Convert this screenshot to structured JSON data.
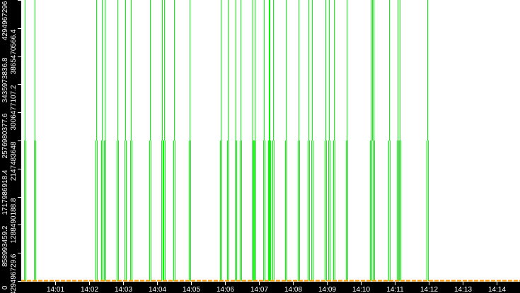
{
  "chart_data": {
    "type": "bar",
    "title": "",
    "xlabel": "",
    "ylabel": "",
    "ylim": [
      0,
      4294967296
    ],
    "xlim": [
      "14:00:00",
      "14:14:45"
    ],
    "grid": false,
    "x_ticks": [
      "14:01",
      "14:02",
      "14:03",
      "14:04",
      "14:05",
      "14:06",
      "14:07",
      "14:08",
      "14:09",
      "14:10",
      "14:11",
      "14:12",
      "14:13",
      "14:14"
    ],
    "y_ticks": [
      "0",
      "429496729.6",
      "858993459.2",
      "1288490188.8",
      "1717986918.4",
      "2147483648",
      "2576980377.6",
      "3006477107.2",
      "3435973836.8",
      "3865470566.4",
      "4294967296"
    ],
    "colors": {
      "background": "#ffffff",
      "frame": "#000000",
      "spikes": "#00ff00",
      "baseline_series": "#ff9900",
      "text": "#ffffff"
    },
    "series": [
      {
        "type": "spike",
        "color": "#00ff00",
        "x": [
          "14:00:06",
          "14:00:24",
          "14:02:13",
          "14:02:23",
          "14:02:28",
          "14:02:50",
          "14:03:04",
          "14:03:14",
          "14:03:47",
          "14:04:09",
          "14:04:13",
          "14:04:30",
          "14:04:58",
          "14:05:52",
          "14:06:05",
          "14:06:19",
          "14:06:27",
          "14:06:49",
          "14:06:53",
          "14:07:09",
          "14:07:17",
          "14:07:19",
          "14:07:25",
          "14:07:47",
          "14:08:10",
          "14:08:28",
          "14:08:34",
          "14:08:58",
          "14:09:04",
          "14:09:12",
          "14:09:35",
          "14:10:17",
          "14:10:20",
          "14:10:23",
          "14:10:50",
          "14:11:05",
          "14:11:09",
          "14:11:58"
        ],
        "values": [
          4294967296,
          4294967296,
          4294967296,
          4294967296,
          4294967296,
          4294967296,
          4294967296,
          4294967296,
          4294967296,
          4294967296,
          4294967296,
          4294967296,
          4294967296,
          4294967296,
          4294967296,
          4294967296,
          4294967296,
          4294967296,
          4294967296,
          4294967296,
          4294967296,
          4294967296,
          4294967296,
          4294967296,
          4294967296,
          4294967296,
          4294967296,
          4294967296,
          4294967296,
          4294967296,
          4294967296,
          4294967296,
          4294967296,
          4294967296,
          4294967296,
          4294967296,
          4294967296,
          4294967296
        ],
        "band_value": 2147483648
      },
      {
        "type": "line",
        "color": "#ff9900",
        "x": [
          "14:00:00",
          "14:14:45"
        ],
        "values": [
          0,
          0
        ]
      }
    ]
  }
}
